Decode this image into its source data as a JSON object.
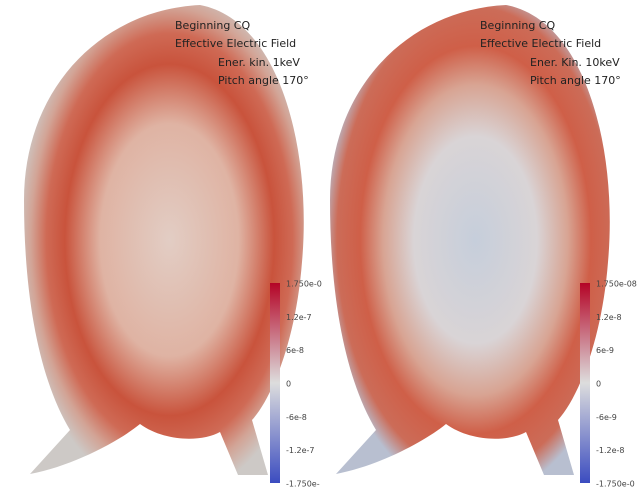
{
  "panels": [
    {
      "title": "Beginning CQ",
      "subtitle": "Effective Electric Field",
      "energy": "Ener. kin. 1keV",
      "pitch": "Pitch angle 170°",
      "colorbar_labels": [
        "1.750e-0",
        "1.2e-7",
        "6e-8",
        "0",
        "-6e-8",
        "-1.2e-7",
        "-1.750e-"
      ]
    },
    {
      "title": "Beginning CQ",
      "subtitle": "Effective Electric Field",
      "energy": "Ener. Kin. 10keV",
      "pitch": "Pitch angle 170°",
      "colorbar_labels": [
        "1.750e-08",
        "1.2e-8",
        "6e-9",
        "0",
        "-6e-9",
        "-1.2e-8",
        "-1.750e-0"
      ]
    }
  ]
}
